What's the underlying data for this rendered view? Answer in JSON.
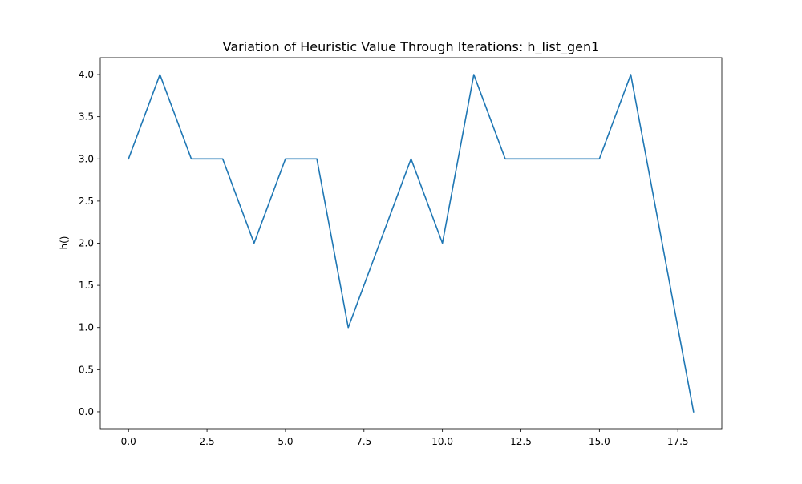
{
  "chart_data": {
    "type": "line",
    "title": "Variation of Heuristic Value Through Iterations: h_list_gen1",
    "xlabel": "",
    "ylabel": "h()",
    "x": [
      0,
      1,
      2,
      3,
      4,
      5,
      6,
      7,
      8,
      9,
      10,
      11,
      12,
      13,
      14,
      15,
      16,
      17,
      18
    ],
    "series": [
      {
        "values": [
          3,
          4,
          3,
          3,
          2,
          3,
          3,
          1,
          2,
          3,
          2,
          4,
          3,
          3,
          3,
          3,
          4,
          2,
          0
        ],
        "color": "#1f77b4"
      }
    ],
    "xlim": [
      -0.9,
      18.9
    ],
    "ylim": [
      -0.2,
      4.2
    ],
    "xticks": [
      0.0,
      2.5,
      5.0,
      7.5,
      10.0,
      12.5,
      15.0,
      17.5
    ],
    "xtick_labels": [
      "0.0",
      "2.5",
      "5.0",
      "7.5",
      "10.0",
      "12.5",
      "15.0",
      "17.5"
    ],
    "yticks": [
      0.0,
      0.5,
      1.0,
      1.5,
      2.0,
      2.5,
      3.0,
      3.5,
      4.0
    ],
    "ytick_labels": [
      "0.0",
      "0.5",
      "1.0",
      "1.5",
      "2.0",
      "2.5",
      "3.0",
      "3.5",
      "4.0"
    ],
    "grid": false,
    "legend": "none"
  }
}
